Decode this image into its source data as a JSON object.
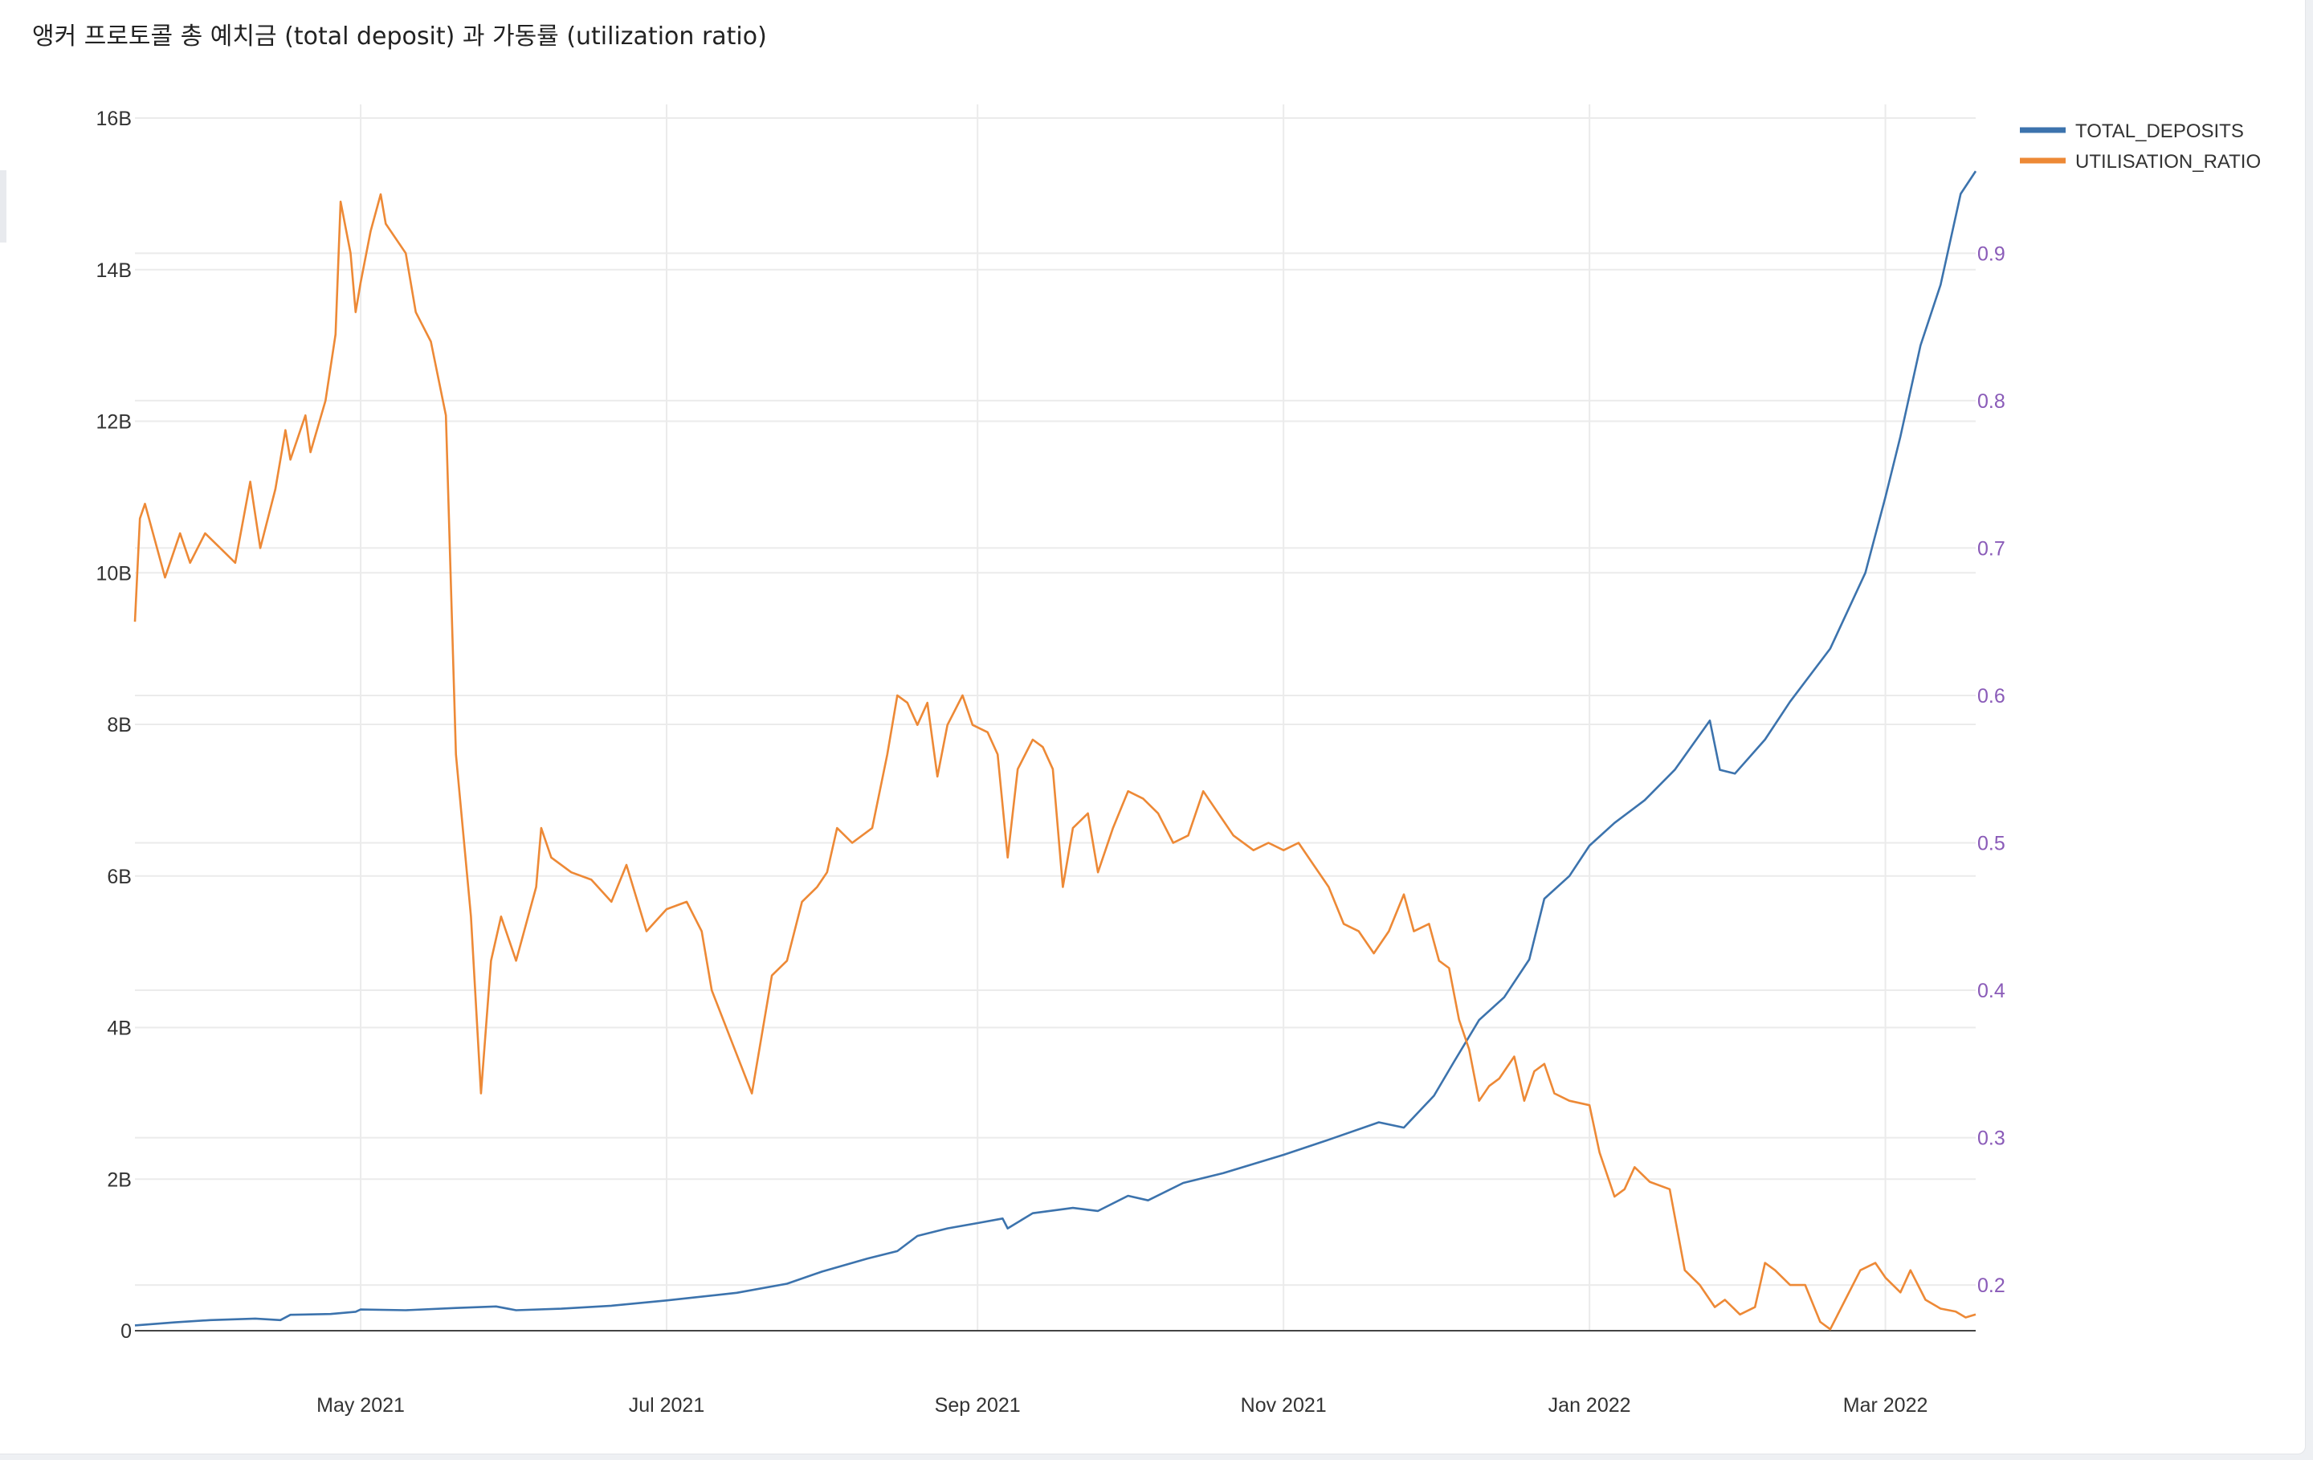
{
  "page": {
    "title": "앵커 프로토콜 총 예치금 (total deposit) 과 가동률 (utilization ratio)"
  },
  "colors": {
    "deposits": "#3c73ad",
    "utilisation": "#ed8936",
    "right_axis": "#8a5bb8",
    "grid": "#ebebeb"
  },
  "chart_data": {
    "type": "line",
    "title": "앵커 프로토콜 총 예치금 (total deposit) 과 가동률 (utilization ratio)",
    "x_range": [
      "2021-03-17",
      "2022-03-19"
    ],
    "x_ticks": [
      {
        "date": "2021-05-01",
        "label": "May 2021"
      },
      {
        "date": "2021-07-01",
        "label": "Jul 2021"
      },
      {
        "date": "2021-09-01",
        "label": "Sep 2021"
      },
      {
        "date": "2021-11-01",
        "label": "Nov 2021"
      },
      {
        "date": "2022-01-01",
        "label": "Jan 2022"
      },
      {
        "date": "2022-03-01",
        "label": "Mar 2022"
      }
    ],
    "y_left": {
      "range": [
        0,
        16000000000
      ],
      "ticks": [
        {
          "value": 0,
          "label": "0"
        },
        {
          "value": 2000000000,
          "label": "2B"
        },
        {
          "value": 4000000000,
          "label": "4B"
        },
        {
          "value": 6000000000,
          "label": "6B"
        },
        {
          "value": 8000000000,
          "label": "8B"
        },
        {
          "value": 10000000000,
          "label": "10B"
        },
        {
          "value": 12000000000,
          "label": "12B"
        },
        {
          "value": 14000000000,
          "label": "14B"
        },
        {
          "value": 16000000000,
          "label": "16B"
        }
      ]
    },
    "y_right": {
      "range": [
        0.169,
        0.977
      ],
      "ticks": [
        {
          "value": 0.2,
          "label": "0.2"
        },
        {
          "value": 0.3,
          "label": "0.3"
        },
        {
          "value": 0.4,
          "label": "0.4"
        },
        {
          "value": 0.5,
          "label": "0.5"
        },
        {
          "value": 0.6,
          "label": "0.6"
        },
        {
          "value": 0.7,
          "label": "0.7"
        },
        {
          "value": 0.8,
          "label": "0.8"
        },
        {
          "value": 0.9,
          "label": "0.9"
        }
      ]
    },
    "grid": true,
    "legend_position": "top-right",
    "series": [
      {
        "name": "TOTAL_DEPOSITS",
        "axis": "left",
        "color": "#3c73ad",
        "points": [
          [
            "2021-03-17",
            70000000.0
          ],
          [
            "2021-03-25",
            110000000.0
          ],
          [
            "2021-04-01",
            140000000.0
          ],
          [
            "2021-04-10",
            160000000.0
          ],
          [
            "2021-04-15",
            140000000.0
          ],
          [
            "2021-04-17",
            210000000.0
          ],
          [
            "2021-04-25",
            220000000.0
          ],
          [
            "2021-04-30",
            250000000.0
          ],
          [
            "2021-05-01",
            280000000.0
          ],
          [
            "2021-05-10",
            270000000.0
          ],
          [
            "2021-05-20",
            300000000.0
          ],
          [
            "2021-05-28",
            320000000.0
          ],
          [
            "2021-06-01",
            270000000.0
          ],
          [
            "2021-06-10",
            290000000.0
          ],
          [
            "2021-06-20",
            330000000.0
          ],
          [
            "2021-07-01",
            400000000.0
          ],
          [
            "2021-07-15",
            500000000.0
          ],
          [
            "2021-07-25",
            620000000.0
          ],
          [
            "2021-08-01",
            780000000.0
          ],
          [
            "2021-08-10",
            950000000.0
          ],
          [
            "2021-08-16",
            1050000000.0
          ],
          [
            "2021-08-20",
            1250000000.0
          ],
          [
            "2021-08-26",
            1350000000.0
          ],
          [
            "2021-09-01",
            1420000000.0
          ],
          [
            "2021-09-06",
            1480000000.0
          ],
          [
            "2021-09-07",
            1350000000.0
          ],
          [
            "2021-09-12",
            1550000000.0
          ],
          [
            "2021-09-20",
            1620000000.0
          ],
          [
            "2021-09-25",
            1580000000.0
          ],
          [
            "2021-10-01",
            1780000000.0
          ],
          [
            "2021-10-05",
            1720000000.0
          ],
          [
            "2021-10-12",
            1950000000.0
          ],
          [
            "2021-10-20",
            2080000000.0
          ],
          [
            "2021-11-01",
            2320000000.0
          ],
          [
            "2021-11-10",
            2520000000.0
          ],
          [
            "2021-11-20",
            2750000000.0
          ],
          [
            "2021-11-25",
            2680000000.0
          ],
          [
            "2021-12-01",
            3100000000.0
          ],
          [
            "2021-12-05",
            3550000000.0
          ],
          [
            "2021-12-10",
            4100000000.0
          ],
          [
            "2021-12-15",
            4400000000.0
          ],
          [
            "2021-12-20",
            4900000000.0
          ],
          [
            "2021-12-23",
            5700000000.0
          ],
          [
            "2021-12-28",
            6000000000.0
          ],
          [
            "2022-01-01",
            6400000000.0
          ],
          [
            "2022-01-06",
            6700000000.0
          ],
          [
            "2022-01-12",
            7000000000.0
          ],
          [
            "2022-01-18",
            7400000000.0
          ],
          [
            "2022-01-25",
            8050000000.0
          ],
          [
            "2022-01-27",
            7400000000.0
          ],
          [
            "2022-01-30",
            7350000000.0
          ],
          [
            "2022-02-05",
            7800000000.0
          ],
          [
            "2022-02-10",
            8300000000.0
          ],
          [
            "2022-02-18",
            9000000000.0
          ],
          [
            "2022-02-25",
            10000000000.0
          ],
          [
            "2022-03-01",
            11000000000.0
          ],
          [
            "2022-03-04",
            11800000000.0
          ],
          [
            "2022-03-08",
            13000000000.0
          ],
          [
            "2022-03-12",
            13800000000.0
          ],
          [
            "2022-03-16",
            15000000000.0
          ],
          [
            "2022-03-19",
            15300000000.0
          ]
        ]
      },
      {
        "name": "UTILISATION_RATIO",
        "axis": "right",
        "color": "#ed8936",
        "points": [
          [
            "2021-03-17",
            0.65
          ],
          [
            "2021-03-18",
            0.72
          ],
          [
            "2021-03-19",
            0.73
          ],
          [
            "2021-03-21",
            0.705
          ],
          [
            "2021-03-23",
            0.68
          ],
          [
            "2021-03-26",
            0.71
          ],
          [
            "2021-03-28",
            0.69
          ],
          [
            "2021-03-31",
            0.71
          ],
          [
            "2021-04-03",
            0.7
          ],
          [
            "2021-04-06",
            0.69
          ],
          [
            "2021-04-09",
            0.745
          ],
          [
            "2021-04-11",
            0.7
          ],
          [
            "2021-04-14",
            0.74
          ],
          [
            "2021-04-16",
            0.78
          ],
          [
            "2021-04-17",
            0.76
          ],
          [
            "2021-04-20",
            0.79
          ],
          [
            "2021-04-21",
            0.765
          ],
          [
            "2021-04-24",
            0.8
          ],
          [
            "2021-04-26",
            0.845
          ],
          [
            "2021-04-27",
            0.935
          ],
          [
            "2021-04-29",
            0.9
          ],
          [
            "2021-04-30",
            0.86
          ],
          [
            "2021-05-01",
            0.88
          ],
          [
            "2021-05-03",
            0.915
          ],
          [
            "2021-05-05",
            0.94
          ],
          [
            "2021-05-06",
            0.92
          ],
          [
            "2021-05-10",
            0.9
          ],
          [
            "2021-05-12",
            0.86
          ],
          [
            "2021-05-15",
            0.84
          ],
          [
            "2021-05-18",
            0.79
          ],
          [
            "2021-05-20",
            0.56
          ],
          [
            "2021-05-23",
            0.45
          ],
          [
            "2021-05-25",
            0.33
          ],
          [
            "2021-05-27",
            0.42
          ],
          [
            "2021-05-29",
            0.45
          ],
          [
            "2021-06-01",
            0.42
          ],
          [
            "2021-06-05",
            0.47
          ],
          [
            "2021-06-06",
            0.51
          ],
          [
            "2021-06-08",
            0.49
          ],
          [
            "2021-06-12",
            0.48
          ],
          [
            "2021-06-16",
            0.475
          ],
          [
            "2021-06-20",
            0.46
          ],
          [
            "2021-06-23",
            0.485
          ],
          [
            "2021-06-27",
            0.44
          ],
          [
            "2021-07-01",
            0.455
          ],
          [
            "2021-07-05",
            0.46
          ],
          [
            "2021-07-08",
            0.44
          ],
          [
            "2021-07-10",
            0.4
          ],
          [
            "2021-07-14",
            0.365
          ],
          [
            "2021-07-18",
            0.33
          ],
          [
            "2021-07-22",
            0.41
          ],
          [
            "2021-07-25",
            0.42
          ],
          [
            "2021-07-28",
            0.46
          ],
          [
            "2021-07-31",
            0.47
          ],
          [
            "2021-08-02",
            0.48
          ],
          [
            "2021-08-04",
            0.51
          ],
          [
            "2021-08-07",
            0.5
          ],
          [
            "2021-08-11",
            0.51
          ],
          [
            "2021-08-14",
            0.56
          ],
          [
            "2021-08-16",
            0.6
          ],
          [
            "2021-08-18",
            0.595
          ],
          [
            "2021-08-20",
            0.58
          ],
          [
            "2021-08-22",
            0.595
          ],
          [
            "2021-08-24",
            0.545
          ],
          [
            "2021-08-26",
            0.58
          ],
          [
            "2021-08-29",
            0.6
          ],
          [
            "2021-08-31",
            0.58
          ],
          [
            "2021-09-03",
            0.575
          ],
          [
            "2021-09-05",
            0.56
          ],
          [
            "2021-09-07",
            0.49
          ],
          [
            "2021-09-09",
            0.55
          ],
          [
            "2021-09-12",
            0.57
          ],
          [
            "2021-09-14",
            0.565
          ],
          [
            "2021-09-16",
            0.55
          ],
          [
            "2021-09-18",
            0.47
          ],
          [
            "2021-09-20",
            0.51
          ],
          [
            "2021-09-23",
            0.52
          ],
          [
            "2021-09-25",
            0.48
          ],
          [
            "2021-09-28",
            0.51
          ],
          [
            "2021-10-01",
            0.535
          ],
          [
            "2021-10-04",
            0.53
          ],
          [
            "2021-10-07",
            0.52
          ],
          [
            "2021-10-10",
            0.5
          ],
          [
            "2021-10-13",
            0.505
          ],
          [
            "2021-10-16",
            0.535
          ],
          [
            "2021-10-19",
            0.52
          ],
          [
            "2021-10-22",
            0.505
          ],
          [
            "2021-10-26",
            0.495
          ],
          [
            "2021-10-29",
            0.5
          ],
          [
            "2021-11-01",
            0.495
          ],
          [
            "2021-11-04",
            0.5
          ],
          [
            "2021-11-07",
            0.485
          ],
          [
            "2021-11-10",
            0.47
          ],
          [
            "2021-11-13",
            0.445
          ],
          [
            "2021-11-16",
            0.44
          ],
          [
            "2021-11-19",
            0.425
          ],
          [
            "2021-11-22",
            0.44
          ],
          [
            "2021-11-25",
            0.465
          ],
          [
            "2021-11-27",
            0.44
          ],
          [
            "2021-11-30",
            0.445
          ],
          [
            "2021-12-02",
            0.42
          ],
          [
            "2021-12-04",
            0.415
          ],
          [
            "2021-12-06",
            0.38
          ],
          [
            "2021-12-08",
            0.36
          ],
          [
            "2021-12-10",
            0.325
          ],
          [
            "2021-12-12",
            0.335
          ],
          [
            "2021-12-14",
            0.34
          ],
          [
            "2021-12-17",
            0.355
          ],
          [
            "2021-12-19",
            0.325
          ],
          [
            "2021-12-21",
            0.345
          ],
          [
            "2021-12-23",
            0.35
          ],
          [
            "2021-12-25",
            0.33
          ],
          [
            "2021-12-28",
            0.325
          ],
          [
            "2022-01-01",
            0.322
          ],
          [
            "2022-01-03",
            0.29
          ],
          [
            "2022-01-06",
            0.26
          ],
          [
            "2022-01-08",
            0.265
          ],
          [
            "2022-01-10",
            0.28
          ],
          [
            "2022-01-13",
            0.27
          ],
          [
            "2022-01-17",
            0.265
          ],
          [
            "2022-01-20",
            0.21
          ],
          [
            "2022-01-23",
            0.2
          ],
          [
            "2022-01-26",
            0.185
          ],
          [
            "2022-01-28",
            0.19
          ],
          [
            "2022-01-31",
            0.18
          ],
          [
            "2022-02-03",
            0.185
          ],
          [
            "2022-02-05",
            0.215
          ],
          [
            "2022-02-07",
            0.21
          ],
          [
            "2022-02-10",
            0.2
          ],
          [
            "2022-02-13",
            0.2
          ],
          [
            "2022-02-16",
            0.175
          ],
          [
            "2022-02-18",
            0.17
          ],
          [
            "2022-02-21",
            0.19
          ],
          [
            "2022-02-24",
            0.21
          ],
          [
            "2022-02-27",
            0.215
          ],
          [
            "2022-03-01",
            0.205
          ],
          [
            "2022-03-04",
            0.195
          ],
          [
            "2022-03-06",
            0.21
          ],
          [
            "2022-03-09",
            0.19
          ],
          [
            "2022-03-12",
            0.184
          ],
          [
            "2022-03-15",
            0.182
          ],
          [
            "2022-03-17",
            0.178
          ],
          [
            "2022-03-19",
            0.18
          ]
        ]
      }
    ]
  }
}
